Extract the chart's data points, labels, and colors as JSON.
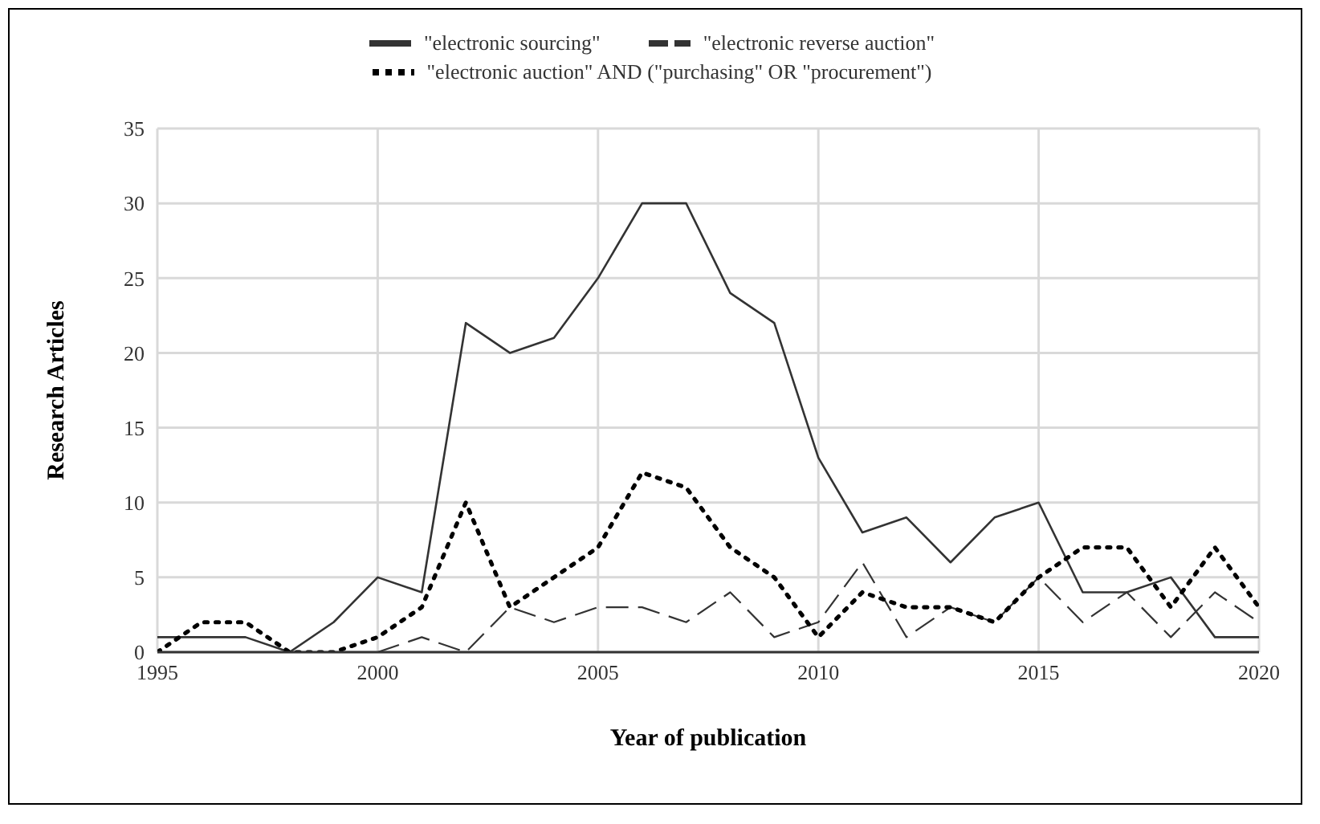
{
  "chart_data": {
    "type": "line",
    "x": [
      1995,
      1996,
      1997,
      1998,
      1999,
      2000,
      2001,
      2002,
      2003,
      2004,
      2005,
      2006,
      2007,
      2008,
      2009,
      2010,
      2011,
      2012,
      2013,
      2014,
      2015,
      2016,
      2017,
      2018,
      2019,
      2020
    ],
    "series": [
      {
        "name": "\"electronic sourcing\"",
        "color": "#333333",
        "line_style": "solid",
        "values": [
          1,
          1,
          1,
          0,
          2,
          5,
          4,
          22,
          20,
          21,
          25,
          30,
          30,
          24,
          22,
          13,
          8,
          9,
          6,
          9,
          10,
          4,
          4,
          5,
          1,
          1
        ]
      },
      {
        "name": "\"electronic reverse auction\"",
        "color": "#333333",
        "line_style": "dashed",
        "values": [
          null,
          null,
          null,
          null,
          null,
          0,
          1,
          0,
          3,
          2,
          3,
          3,
          2,
          4,
          1,
          2,
          6,
          1,
          3,
          2,
          5,
          2,
          4,
          1,
          4,
          2
        ]
      },
      {
        "name": "\"electronic auction\" AND (\"purchasing\" OR \"procurement\")",
        "color": "#000000",
        "line_style": "dotted",
        "values": [
          0,
          2,
          2,
          0,
          0,
          1,
          3,
          10,
          3,
          5,
          7,
          12,
          11,
          7,
          5,
          1,
          4,
          3,
          3,
          2,
          5,
          7,
          7,
          3,
          7,
          3
        ]
      }
    ],
    "xlim": [
      1995,
      2020
    ],
    "xticks": [
      1995,
      2000,
      2005,
      2010,
      2015,
      2020
    ],
    "ylim": [
      0,
      35
    ],
    "yticks": [
      0,
      5,
      10,
      15,
      20,
      25,
      30,
      35
    ],
    "xlabel": "Year of publication",
    "ylabel": "Research Articles",
    "grid": true,
    "legend": "top",
    "marker": "none"
  }
}
